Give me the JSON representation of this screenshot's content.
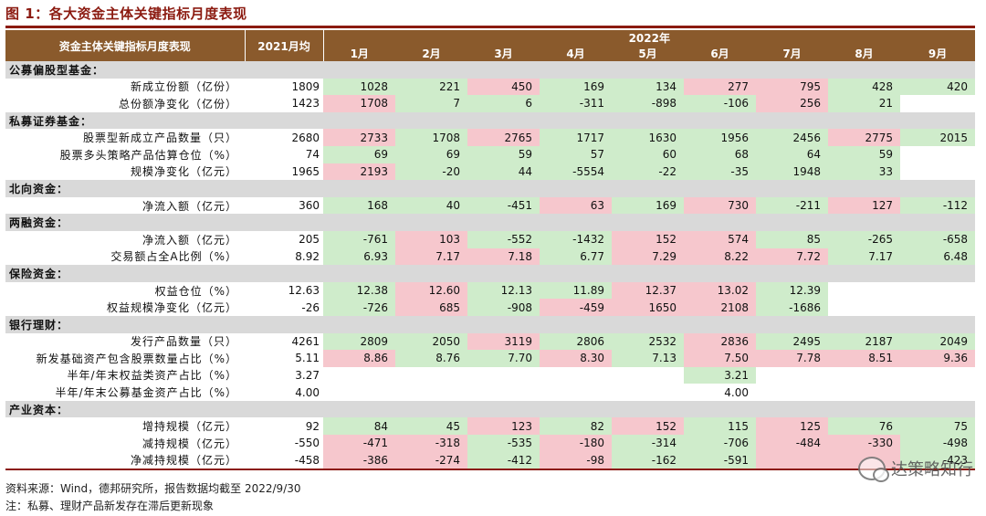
{
  "figure": {
    "title": "图 1：各大资金主体关键指标月度表现"
  },
  "header": {
    "label": "资金主体关键指标月度表现",
    "avg": "2021月均",
    "year": "2022年",
    "months": [
      "1月",
      "2月",
      "3月",
      "4月",
      "5月",
      "6月",
      "7月",
      "8月",
      "9月"
    ]
  },
  "sections": [
    {
      "name": "公募偏股型基金：",
      "rows": [
        {
          "label": "新成立份额（亿份）",
          "avg": "1809",
          "cells": [
            {
              "v": "1028",
              "c": "g"
            },
            {
              "v": "221",
              "c": "g"
            },
            {
              "v": "450",
              "c": "r"
            },
            {
              "v": "169",
              "c": "g"
            },
            {
              "v": "134",
              "c": "g"
            },
            {
              "v": "277",
              "c": "r"
            },
            {
              "v": "795",
              "c": "r"
            },
            {
              "v": "428",
              "c": "g"
            },
            {
              "v": "420",
              "c": "g"
            }
          ]
        },
        {
          "label": "总份额净变化（亿份）",
          "avg": "1423",
          "cells": [
            {
              "v": "1708",
              "c": "r"
            },
            {
              "v": "7",
              "c": "g"
            },
            {
              "v": "6",
              "c": "g"
            },
            {
              "v": "-311",
              "c": "g"
            },
            {
              "v": "-898",
              "c": "g"
            },
            {
              "v": "-106",
              "c": "g"
            },
            {
              "v": "256",
              "c": "r"
            },
            {
              "v": "21",
              "c": "g"
            },
            {
              "v": "",
              "c": "w"
            }
          ]
        }
      ]
    },
    {
      "name": "私募证券基金：",
      "rows": [
        {
          "label": "股票型新成立产品数量（只）",
          "avg": "2680",
          "cells": [
            {
              "v": "2733",
              "c": "r"
            },
            {
              "v": "1708",
              "c": "g"
            },
            {
              "v": "2765",
              "c": "r"
            },
            {
              "v": "1717",
              "c": "g"
            },
            {
              "v": "1630",
              "c": "g"
            },
            {
              "v": "1956",
              "c": "g"
            },
            {
              "v": "2456",
              "c": "g"
            },
            {
              "v": "2775",
              "c": "r"
            },
            {
              "v": "2015",
              "c": "g"
            }
          ]
        },
        {
          "label": "股票多头策略产品估算仓位（%）",
          "avg": "74",
          "cells": [
            {
              "v": "69",
              "c": "g"
            },
            {
              "v": "69",
              "c": "g"
            },
            {
              "v": "59",
              "c": "g"
            },
            {
              "v": "57",
              "c": "g"
            },
            {
              "v": "60",
              "c": "g"
            },
            {
              "v": "68",
              "c": "g"
            },
            {
              "v": "64",
              "c": "g"
            },
            {
              "v": "59",
              "c": "g"
            },
            {
              "v": "",
              "c": "w"
            }
          ]
        },
        {
          "label": "规模净变化（亿元）",
          "avg": "1965",
          "cells": [
            {
              "v": "2193",
              "c": "r"
            },
            {
              "v": "-20",
              "c": "g"
            },
            {
              "v": "44",
              "c": "g"
            },
            {
              "v": "-5554",
              "c": "g"
            },
            {
              "v": "-22",
              "c": "g"
            },
            {
              "v": "-35",
              "c": "g"
            },
            {
              "v": "1948",
              "c": "g"
            },
            {
              "v": "33",
              "c": "g"
            },
            {
              "v": "",
              "c": "w"
            }
          ]
        }
      ]
    },
    {
      "name": "北向资金：",
      "rows": [
        {
          "label": "净流入额（亿元）",
          "avg": "360",
          "cells": [
            {
              "v": "168",
              "c": "g"
            },
            {
              "v": "40",
              "c": "g"
            },
            {
              "v": "-451",
              "c": "g"
            },
            {
              "v": "63",
              "c": "r"
            },
            {
              "v": "169",
              "c": "g"
            },
            {
              "v": "730",
              "c": "r"
            },
            {
              "v": "-211",
              "c": "g"
            },
            {
              "v": "127",
              "c": "r"
            },
            {
              "v": "-112",
              "c": "g"
            }
          ]
        }
      ]
    },
    {
      "name": "两融资金：",
      "rows": [
        {
          "label": "净流入额（亿元）",
          "avg": "205",
          "cells": [
            {
              "v": "-761",
              "c": "g"
            },
            {
              "v": "103",
              "c": "r"
            },
            {
              "v": "-552",
              "c": "g"
            },
            {
              "v": "-1432",
              "c": "g"
            },
            {
              "v": "152",
              "c": "r"
            },
            {
              "v": "574",
              "c": "r"
            },
            {
              "v": "85",
              "c": "g"
            },
            {
              "v": "-265",
              "c": "g"
            },
            {
              "v": "-658",
              "c": "g"
            }
          ]
        },
        {
          "label": "交易额占全A比例（%）",
          "avg": "8.92",
          "cells": [
            {
              "v": "6.93",
              "c": "g"
            },
            {
              "v": "7.17",
              "c": "r"
            },
            {
              "v": "7.18",
              "c": "r"
            },
            {
              "v": "6.77",
              "c": "g"
            },
            {
              "v": "7.29",
              "c": "r"
            },
            {
              "v": "8.22",
              "c": "r"
            },
            {
              "v": "7.72",
              "c": "r"
            },
            {
              "v": "7.17",
              "c": "g"
            },
            {
              "v": "6.48",
              "c": "g"
            }
          ]
        }
      ]
    },
    {
      "name": "保险资金：",
      "rows": [
        {
          "label": "权益仓位（%）",
          "avg": "12.63",
          "cells": [
            {
              "v": "12.38",
              "c": "g"
            },
            {
              "v": "12.60",
              "c": "r"
            },
            {
              "v": "12.13",
              "c": "g"
            },
            {
              "v": "11.89",
              "c": "g"
            },
            {
              "v": "12.37",
              "c": "r"
            },
            {
              "v": "13.02",
              "c": "r"
            },
            {
              "v": "12.39",
              "c": "g"
            },
            {
              "v": "",
              "c": "w"
            },
            {
              "v": "",
              "c": "w"
            }
          ]
        },
        {
          "label": "权益规模净变化（亿元）",
          "avg": "-26",
          "cells": [
            {
              "v": "-726",
              "c": "g"
            },
            {
              "v": "685",
              "c": "r"
            },
            {
              "v": "-908",
              "c": "g"
            },
            {
              "v": "-459",
              "c": "r"
            },
            {
              "v": "1650",
              "c": "r"
            },
            {
              "v": "2108",
              "c": "r"
            },
            {
              "v": "-1686",
              "c": "g"
            },
            {
              "v": "",
              "c": "w"
            },
            {
              "v": "",
              "c": "w"
            }
          ]
        }
      ]
    },
    {
      "name": "银行理财：",
      "rows": [
        {
          "label": "发行产品数量（只）",
          "avg": "4261",
          "cells": [
            {
              "v": "2809",
              "c": "g"
            },
            {
              "v": "2050",
              "c": "g"
            },
            {
              "v": "3119",
              "c": "r"
            },
            {
              "v": "2806",
              "c": "g"
            },
            {
              "v": "2532",
              "c": "g"
            },
            {
              "v": "2836",
              "c": "r"
            },
            {
              "v": "2495",
              "c": "g"
            },
            {
              "v": "2187",
              "c": "g"
            },
            {
              "v": "2049",
              "c": "g"
            }
          ]
        },
        {
          "label": "新发基础资产包含股票数量占比（%）",
          "avg": "5.11",
          "cells": [
            {
              "v": "8.86",
              "c": "r"
            },
            {
              "v": "8.76",
              "c": "g"
            },
            {
              "v": "7.70",
              "c": "g"
            },
            {
              "v": "8.30",
              "c": "r"
            },
            {
              "v": "7.13",
              "c": "g"
            },
            {
              "v": "7.50",
              "c": "r"
            },
            {
              "v": "7.78",
              "c": "r"
            },
            {
              "v": "8.51",
              "c": "r"
            },
            {
              "v": "9.36",
              "c": "r"
            }
          ]
        },
        {
          "label": "半年/年末权益类资产占比（%）",
          "avg": "3.27",
          "cells": [
            {
              "v": "",
              "c": "w"
            },
            {
              "v": "",
              "c": "w"
            },
            {
              "v": "",
              "c": "w"
            },
            {
              "v": "",
              "c": "w"
            },
            {
              "v": "",
              "c": "w"
            },
            {
              "v": "3.21",
              "c": "g"
            },
            {
              "v": "",
              "c": "w"
            },
            {
              "v": "",
              "c": "w"
            },
            {
              "v": "",
              "c": "w"
            }
          ]
        },
        {
          "label": "半年/年末公募基金资产占比（%）",
          "avg": "4.00",
          "cells": [
            {
              "v": "",
              "c": "w"
            },
            {
              "v": "",
              "c": "w"
            },
            {
              "v": "",
              "c": "w"
            },
            {
              "v": "",
              "c": "w"
            },
            {
              "v": "",
              "c": "w"
            },
            {
              "v": "4.00",
              "c": "w"
            },
            {
              "v": "",
              "c": "w"
            },
            {
              "v": "",
              "c": "w"
            },
            {
              "v": "",
              "c": "w"
            }
          ]
        }
      ]
    },
    {
      "name": "产业资本：",
      "rows": [
        {
          "label": "增持规模（亿元）",
          "avg": "92",
          "cells": [
            {
              "v": "84",
              "c": "g"
            },
            {
              "v": "45",
              "c": "g"
            },
            {
              "v": "123",
              "c": "r"
            },
            {
              "v": "82",
              "c": "g"
            },
            {
              "v": "152",
              "c": "r"
            },
            {
              "v": "115",
              "c": "g"
            },
            {
              "v": "125",
              "c": "r"
            },
            {
              "v": "76",
              "c": "g"
            },
            {
              "v": "75",
              "c": "g"
            }
          ]
        },
        {
          "label": "减持规模（亿元）",
          "avg": "-550",
          "cells": [
            {
              "v": "-471",
              "c": "r"
            },
            {
              "v": "-318",
              "c": "r"
            },
            {
              "v": "-535",
              "c": "g"
            },
            {
              "v": "-180",
              "c": "r"
            },
            {
              "v": "-314",
              "c": "g"
            },
            {
              "v": "-706",
              "c": "g"
            },
            {
              "v": "-484",
              "c": "r"
            },
            {
              "v": "-330",
              "c": "r"
            },
            {
              "v": "-498",
              "c": "g"
            }
          ]
        },
        {
          "label": "净减持规模（亿元）",
          "avg": "-458",
          "cells": [
            {
              "v": "-386",
              "c": "r"
            },
            {
              "v": "-274",
              "c": "r"
            },
            {
              "v": "-412",
              "c": "g"
            },
            {
              "v": "-98",
              "c": "r"
            },
            {
              "v": "-162",
              "c": "g"
            },
            {
              "v": "-591",
              "c": "g"
            },
            {
              "v": "",
              "c": "r"
            },
            {
              "v": "",
              "c": "r"
            },
            {
              "v": "-423",
              "c": "g"
            }
          ]
        }
      ]
    }
  ],
  "footer": {
    "source": "资料来源：Wind，德邦研究所，报告数据均截至 2022/9/30",
    "note": "注：私募、理财产品新发存在滞后更新现象"
  },
  "watermark": {
    "text": "达策略知行",
    "icon": "wechat-icon"
  },
  "colors": {
    "header": "#8a5a2c",
    "accent": "#8b1a10",
    "green": "#cfeccb",
    "red": "#f6c7cd",
    "section": "#d9d9d9"
  }
}
